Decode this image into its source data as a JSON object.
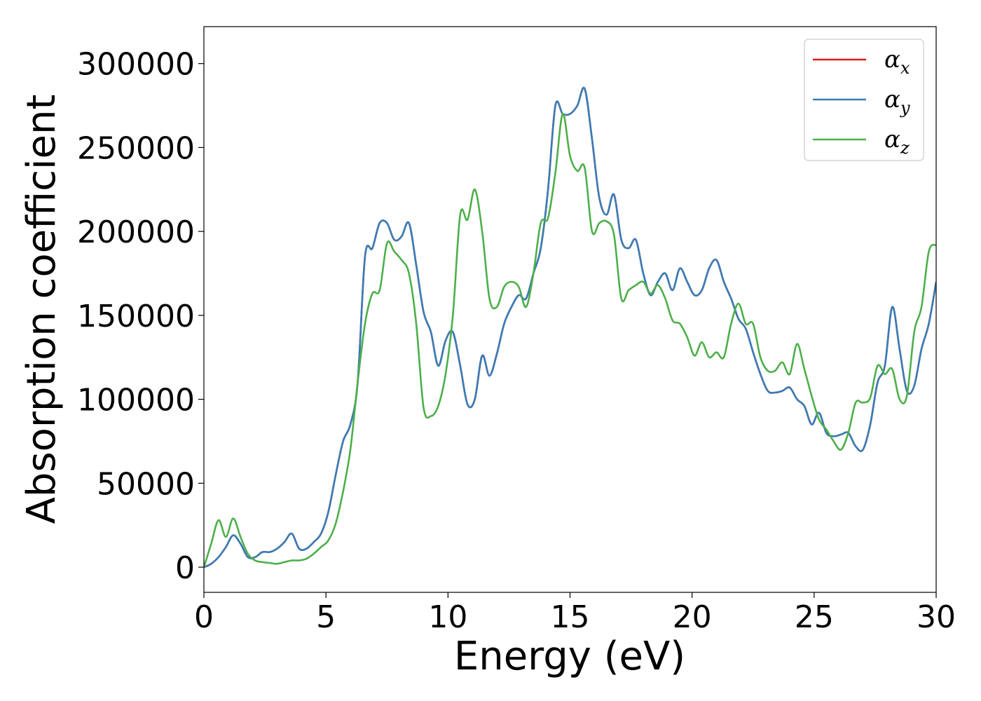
{
  "chart_data": {
    "type": "line",
    "title": "",
    "xlabel": "Energy (eV)",
    "ylabel": "Absorption coefficient",
    "xlim": [
      0,
      30
    ],
    "ylim": [
      -15000,
      322000
    ],
    "xticks": [
      0,
      5,
      10,
      15,
      20,
      25,
      30
    ],
    "yticks": [
      0,
      50000,
      100000,
      150000,
      200000,
      250000,
      300000
    ],
    "xtick_labels": [
      "0",
      "5",
      "10",
      "15",
      "20",
      "25",
      "30"
    ],
    "ytick_labels": [
      "0",
      "50000",
      "100000",
      "150000",
      "200000",
      "250000",
      "300000"
    ],
    "grid": false,
    "legend_position": "top-right",
    "series": [
      {
        "name": "α",
        "subscript": "x",
        "color": "#e41a1c",
        "x": [
          0,
          0.3,
          0.6,
          0.9,
          1.2,
          1.5,
          1.8,
          2.1,
          2.4,
          2.7,
          3.0,
          3.3,
          3.6,
          3.9,
          4.2,
          4.5,
          4.8,
          5.1,
          5.4,
          5.7,
          6.0,
          6.3,
          6.6,
          6.9,
          7.2,
          7.5,
          7.8,
          8.1,
          8.4,
          8.7,
          9.0,
          9.3,
          9.6,
          9.9,
          10.2,
          10.5,
          10.8,
          11.1,
          11.4,
          11.7,
          12.0,
          12.3,
          12.6,
          12.9,
          13.2,
          13.5,
          13.8,
          14.1,
          14.4,
          14.7,
          15.0,
          15.3,
          15.6,
          15.9,
          16.2,
          16.5,
          16.8,
          17.1,
          17.4,
          17.7,
          18.0,
          18.3,
          18.6,
          18.9,
          19.2,
          19.5,
          19.8,
          20.1,
          20.4,
          20.7,
          21.0,
          21.3,
          21.6,
          21.9,
          22.2,
          22.5,
          22.8,
          23.1,
          23.4,
          23.7,
          24.0,
          24.3,
          24.6,
          24.9,
          25.2,
          25.5,
          25.8,
          26.1,
          26.4,
          26.7,
          27.0,
          27.3,
          27.6,
          27.9,
          28.2,
          28.5,
          28.8,
          29.1,
          29.4,
          29.7,
          30.0
        ],
        "values": [
          0,
          2000,
          6000,
          12000,
          19000,
          14000,
          6000,
          6000,
          9000,
          9000,
          11000,
          15000,
          20000,
          11000,
          11000,
          15000,
          20000,
          33000,
          55000,
          75000,
          85000,
          110000,
          185000,
          190000,
          205000,
          205000,
          195000,
          197000,
          205000,
          180000,
          152000,
          140000,
          120000,
          135000,
          140000,
          120000,
          97000,
          100000,
          126000,
          114000,
          127000,
          145000,
          155000,
          162000,
          160000,
          175000,
          190000,
          225000,
          275000,
          270000,
          270000,
          275000,
          285000,
          255000,
          220000,
          210000,
          222000,
          195000,
          190000,
          195000,
          175000,
          162000,
          170000,
          175000,
          165000,
          178000,
          170000,
          162000,
          165000,
          178000,
          183000,
          170000,
          160000,
          148000,
          142000,
          128000,
          115000,
          105000,
          104000,
          105000,
          107000,
          100000,
          96000,
          85000,
          92000,
          80000,
          78000,
          79000,
          80000,
          72000,
          70000,
          85000,
          110000,
          120000,
          155000,
          130000,
          105000,
          108000,
          130000,
          145000,
          170000
        ]
      },
      {
        "name": "α",
        "subscript": "y",
        "color": "#377eb8",
        "x": [
          0,
          0.3,
          0.6,
          0.9,
          1.2,
          1.5,
          1.8,
          2.1,
          2.4,
          2.7,
          3.0,
          3.3,
          3.6,
          3.9,
          4.2,
          4.5,
          4.8,
          5.1,
          5.4,
          5.7,
          6.0,
          6.3,
          6.6,
          6.9,
          7.2,
          7.5,
          7.8,
          8.1,
          8.4,
          8.7,
          9.0,
          9.3,
          9.6,
          9.9,
          10.2,
          10.5,
          10.8,
          11.1,
          11.4,
          11.7,
          12.0,
          12.3,
          12.6,
          12.9,
          13.2,
          13.5,
          13.8,
          14.1,
          14.4,
          14.7,
          15.0,
          15.3,
          15.6,
          15.9,
          16.2,
          16.5,
          16.8,
          17.1,
          17.4,
          17.7,
          18.0,
          18.3,
          18.6,
          18.9,
          19.2,
          19.5,
          19.8,
          20.1,
          20.4,
          20.7,
          21.0,
          21.3,
          21.6,
          21.9,
          22.2,
          22.5,
          22.8,
          23.1,
          23.4,
          23.7,
          24.0,
          24.3,
          24.6,
          24.9,
          25.2,
          25.5,
          25.8,
          26.1,
          26.4,
          26.7,
          27.0,
          27.3,
          27.6,
          27.9,
          28.2,
          28.5,
          28.8,
          29.1,
          29.4,
          29.7,
          30.0
        ],
        "values": [
          0,
          2000,
          6000,
          12000,
          19000,
          14000,
          6000,
          6000,
          9000,
          9000,
          11000,
          15000,
          20000,
          11000,
          11000,
          15000,
          20000,
          33000,
          55000,
          75000,
          85000,
          110000,
          185000,
          190000,
          205000,
          205000,
          195000,
          197000,
          205000,
          180000,
          152000,
          140000,
          120000,
          135000,
          140000,
          120000,
          97000,
          100000,
          126000,
          114000,
          127000,
          145000,
          155000,
          162000,
          160000,
          175000,
          190000,
          225000,
          275000,
          270000,
          270000,
          275000,
          285000,
          255000,
          220000,
          210000,
          222000,
          195000,
          190000,
          195000,
          175000,
          162000,
          170000,
          175000,
          165000,
          178000,
          170000,
          162000,
          165000,
          178000,
          183000,
          170000,
          160000,
          148000,
          142000,
          128000,
          115000,
          105000,
          104000,
          105000,
          107000,
          100000,
          96000,
          85000,
          92000,
          80000,
          78000,
          79000,
          80000,
          72000,
          70000,
          85000,
          110000,
          120000,
          155000,
          130000,
          105000,
          108000,
          130000,
          145000,
          170000
        ]
      },
      {
        "name": "α",
        "subscript": "z",
        "color": "#4daf4a",
        "x": [
          0,
          0.3,
          0.6,
          0.9,
          1.2,
          1.5,
          1.8,
          2.1,
          2.4,
          2.7,
          3.0,
          3.3,
          3.6,
          3.9,
          4.2,
          4.5,
          4.8,
          5.1,
          5.4,
          5.7,
          6.0,
          6.3,
          6.6,
          6.9,
          7.2,
          7.5,
          7.8,
          8.1,
          8.4,
          8.7,
          9.0,
          9.3,
          9.6,
          9.9,
          10.2,
          10.5,
          10.8,
          11.1,
          11.4,
          11.7,
          12.0,
          12.3,
          12.6,
          12.9,
          13.2,
          13.5,
          13.8,
          14.1,
          14.4,
          14.7,
          15.0,
          15.3,
          15.6,
          15.9,
          16.2,
          16.5,
          16.8,
          17.1,
          17.4,
          17.7,
          18.0,
          18.3,
          18.6,
          18.9,
          19.2,
          19.5,
          19.8,
          20.1,
          20.4,
          20.7,
          21.0,
          21.3,
          21.6,
          21.9,
          22.2,
          22.5,
          22.8,
          23.1,
          23.4,
          23.7,
          24.0,
          24.3,
          24.6,
          24.9,
          25.2,
          25.5,
          25.8,
          26.1,
          26.4,
          26.7,
          27.0,
          27.3,
          27.6,
          27.9,
          28.2,
          28.5,
          28.8,
          29.1,
          29.4,
          29.7,
          30.0
        ],
        "values": [
          0,
          14000,
          28000,
          18000,
          29000,
          18000,
          8000,
          4000,
          3000,
          2500,
          2000,
          3000,
          4000,
          4000,
          5000,
          8000,
          12000,
          16000,
          26000,
          45000,
          70000,
          110000,
          145000,
          163000,
          165000,
          193000,
          188000,
          183000,
          175000,
          145000,
          95000,
          90000,
          96000,
          115000,
          150000,
          210000,
          207000,
          225000,
          200000,
          160000,
          155000,
          167000,
          170000,
          167000,
          155000,
          175000,
          205000,
          208000,
          235000,
          270000,
          245000,
          236000,
          238000,
          200000,
          205000,
          206000,
          198000,
          160000,
          165000,
          168000,
          170000,
          163000,
          168000,
          160000,
          147000,
          145000,
          137000,
          126000,
          134000,
          125000,
          128000,
          125000,
          145000,
          157000,
          145000,
          145000,
          125000,
          117000,
          117000,
          122000,
          115000,
          133000,
          118000,
          102000,
          88000,
          82000,
          75000,
          70000,
          80000,
          98000,
          98000,
          101000,
          120000,
          115000,
          118000,
          100000,
          102000,
          140000,
          155000,
          188000,
          192000
        ]
      }
    ]
  }
}
